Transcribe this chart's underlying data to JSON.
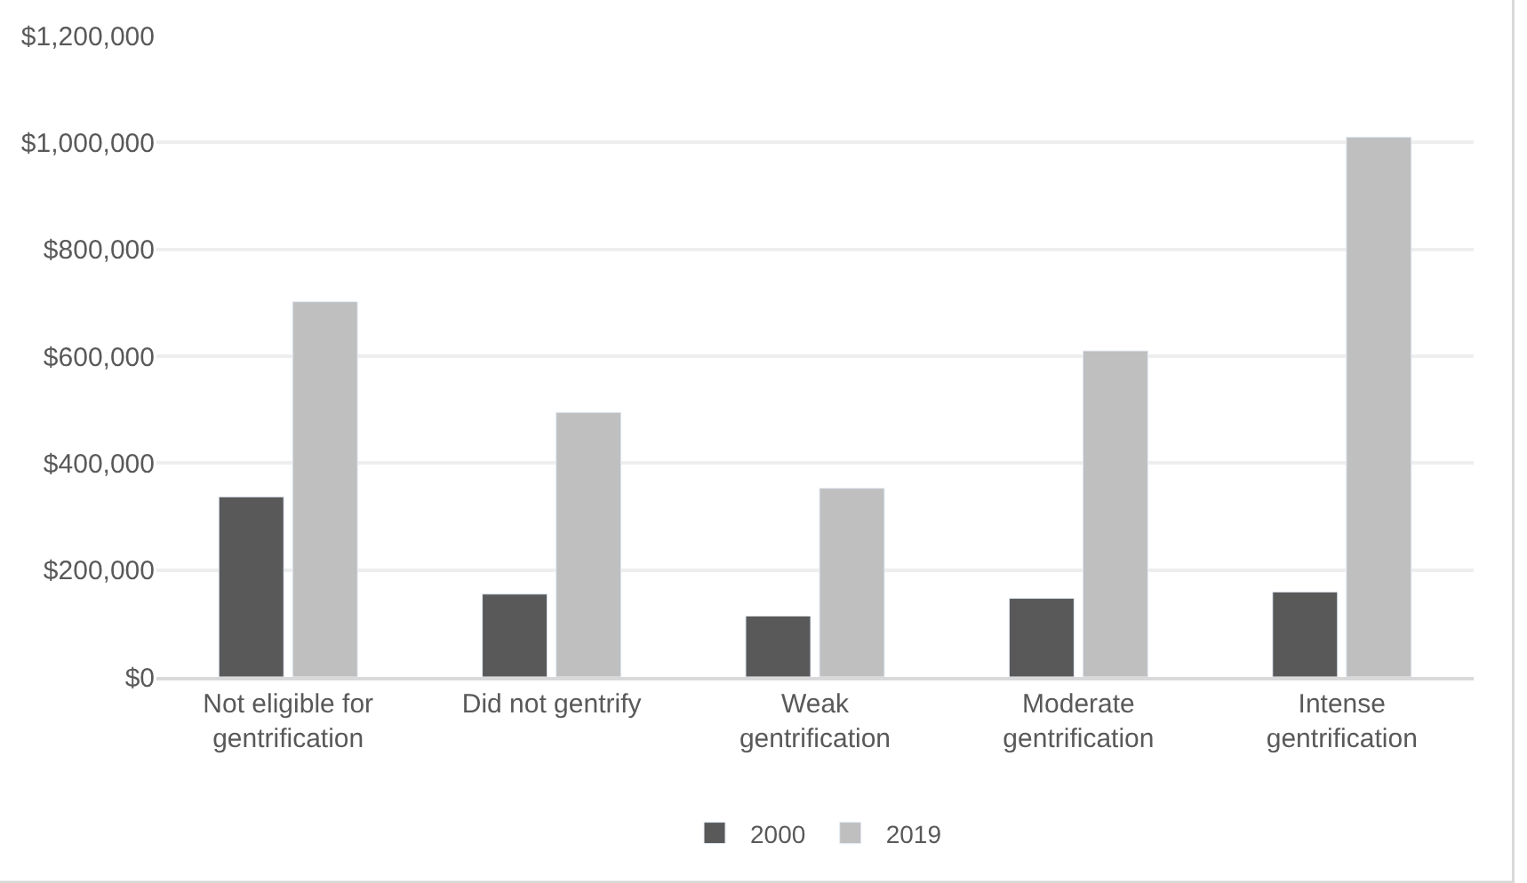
{
  "chart_data": {
    "type": "bar",
    "categories": [
      "Not eligible for\ngentrification",
      "Did not gentrify",
      "Weak\ngentrification",
      "Moderate\ngentrification",
      "Intense\ngentrification"
    ],
    "series": [
      {
        "name": "2000",
        "color": "#595959",
        "values": [
          337000,
          155000,
          114000,
          147000,
          159000
        ]
      },
      {
        "name": "2019",
        "color": "#bfbfbf",
        "values": [
          702000,
          495000,
          353000,
          610000,
          1010000
        ]
      }
    ],
    "ylim": [
      0,
      1200000
    ],
    "yticks": [
      {
        "value": 0,
        "label": "$0"
      },
      {
        "value": 200000,
        "label": "$200,000"
      },
      {
        "value": 400000,
        "label": "$400,000"
      },
      {
        "value": 600000,
        "label": "$600,000"
      },
      {
        "value": 800000,
        "label": "$800,000"
      },
      {
        "value": 1000000,
        "label": "$1,000,000"
      },
      {
        "value": 1200000,
        "label": "$1,200,000"
      }
    ],
    "grid": "y",
    "legend": "bottom"
  }
}
